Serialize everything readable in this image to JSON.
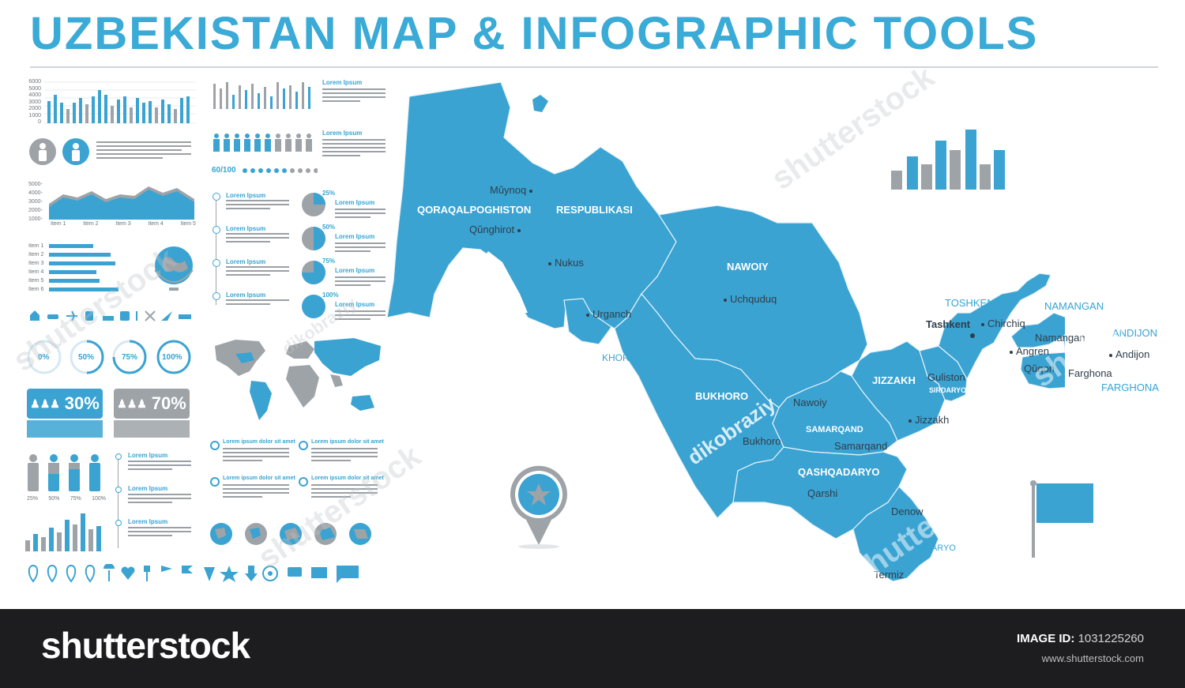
{
  "title": "UZBEKISTAN MAP & INFOGRAPHIC TOOLS",
  "colors": {
    "accent": "#3aaad6",
    "map": "#3aa3d2",
    "gray": "#9ea3a8",
    "footer": "#1d1d1f"
  },
  "infographic": {
    "bar_axis": [
      "6000",
      "5000",
      "4000",
      "3000",
      "2000",
      "1000",
      "0"
    ],
    "area_axis": [
      "5000-",
      "4000-",
      "3000-",
      "2000-",
      "1000-"
    ],
    "area_items": [
      "Item 1",
      "Item 2",
      "Item 3",
      "Item 4",
      "Item 5"
    ],
    "hbar_items": [
      "Item 1",
      "Item 2",
      "Item 3",
      "Item 4",
      "Item 5",
      "Item 6"
    ],
    "ring_labels": [
      "0%",
      "50%",
      "75%",
      "100%"
    ],
    "pct_blue": "30%",
    "pct_gray": "70%",
    "people_score": "60/100",
    "people_pcts": [
      "25%",
      "50%",
      "75%",
      "100%"
    ],
    "lorem": "Lorem Ipsum",
    "lorem_long": "Lorem ipsum dolor sit amet",
    "pie_pcts": [
      "25%",
      "50%",
      "75%",
      "100%"
    ]
  },
  "map": {
    "regions": [
      {
        "name": "QORAQALPOGHISTON",
        "style": "white"
      },
      {
        "name": "RESPUBLIKASI",
        "style": "white"
      },
      {
        "name": "NAWOIY",
        "style": "white"
      },
      {
        "name": "KHORAZM",
        "style": "blue"
      },
      {
        "name": "BUKHORO",
        "style": "white"
      },
      {
        "name": "JIZZAKH",
        "style": "white"
      },
      {
        "name": "SAMARQAND",
        "style": "white"
      },
      {
        "name": "QASHQADARYO",
        "style": "white"
      },
      {
        "name": "TOSHKENT",
        "style": "blue"
      },
      {
        "name": "NAMANGAN",
        "style": "blue"
      },
      {
        "name": "ANDIJON",
        "style": "blue"
      },
      {
        "name": "FARGHONA",
        "style": "blue"
      },
      {
        "name": "SIRDARYO",
        "style": "white"
      },
      {
        "name": "SURKHONDARYO",
        "style": "blue"
      }
    ],
    "cities": [
      "Mŭynoq",
      "Qŭnghirot",
      "Nukus",
      "Urganch",
      "Uchquduq",
      "Tashkent",
      "Chirchiq",
      "Namangan",
      "Angren",
      "Qŭqon",
      "Andijon",
      "Farghona",
      "Guliston",
      "Jizzakh",
      "Nawoiy",
      "Bukhoro",
      "Samarqand",
      "Qarshi",
      "Denow",
      "Termiz"
    ]
  },
  "watermarks": {
    "brand": "shutterstock",
    "author": "dikobraziy"
  },
  "footer": {
    "logo": "shutterstock",
    "image_id_label": "IMAGE ID:",
    "image_id": "1031225260",
    "site": "www.shutterstock.com"
  }
}
